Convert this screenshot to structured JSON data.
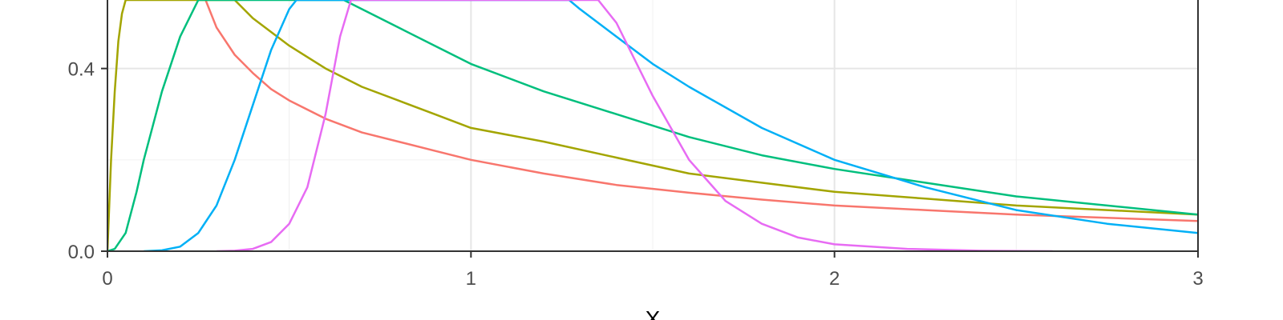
{
  "chart_data": {
    "type": "line",
    "title": "",
    "xlabel": "X",
    "ylabel": "",
    "xlim": [
      0,
      3
    ],
    "ylim": [
      0,
      0.55
    ],
    "grid": true,
    "x_major_ticks": [
      0,
      1,
      2,
      3
    ],
    "x_tick_labels": [
      "0",
      "1",
      "2",
      "3"
    ],
    "x_minor_ticks": [
      0.5,
      1.5,
      2.5
    ],
    "y_major_ticks": [
      0,
      0.4
    ],
    "y_tick_labels": [
      "0.0",
      "0.4"
    ],
    "y_minor_ticks": [
      0.2
    ],
    "series": [
      {
        "color": "#F8766D",
        "x": [
          0.27,
          0.3,
          0.35,
          0.4,
          0.45,
          0.5,
          0.6,
          0.7,
          0.8,
          0.9,
          1.0,
          1.2,
          1.4,
          1.6,
          1.8,
          2.0,
          2.25,
          2.5,
          2.75,
          3.0
        ],
        "y": [
          0.55,
          0.49,
          0.43,
          0.39,
          0.355,
          0.33,
          0.29,
          0.26,
          0.24,
          0.22,
          0.2,
          0.17,
          0.145,
          0.128,
          0.113,
          0.1,
          0.09,
          0.08,
          0.073,
          0.066
        ]
      },
      {
        "color": "#A3A500",
        "x": [
          0,
          0.01,
          0.02,
          0.03,
          0.04,
          0.05,
          0.35,
          0.4,
          0.5,
          0.6,
          0.7,
          0.8,
          0.9,
          1.0,
          1.2,
          1.4,
          1.6,
          1.8,
          2.0,
          2.25,
          2.5,
          2.75,
          3.0
        ],
        "y": [
          0,
          0.2,
          0.35,
          0.46,
          0.52,
          0.55,
          0.55,
          0.51,
          0.45,
          0.4,
          0.36,
          0.33,
          0.3,
          0.27,
          0.24,
          0.205,
          0.17,
          0.15,
          0.13,
          0.115,
          0.1,
          0.09,
          0.08
        ]
      },
      {
        "color": "#00BF7D",
        "x": [
          0,
          0.02,
          0.05,
          0.08,
          0.1,
          0.15,
          0.2,
          0.25,
          0.65,
          0.7,
          0.8,
          0.9,
          1.0,
          1.2,
          1.4,
          1.6,
          1.8,
          2.0,
          2.25,
          2.5,
          2.75,
          3.0
        ],
        "y": [
          0,
          0.005,
          0.04,
          0.13,
          0.2,
          0.35,
          0.47,
          0.55,
          0.55,
          0.53,
          0.49,
          0.45,
          0.41,
          0.35,
          0.3,
          0.25,
          0.21,
          0.18,
          0.15,
          0.12,
          0.1,
          0.08
        ]
      },
      {
        "color": "#00B0F6",
        "x": [
          0.1,
          0.15,
          0.2,
          0.25,
          0.3,
          0.35,
          0.4,
          0.45,
          0.5,
          0.52,
          1.27,
          1.3,
          1.4,
          1.5,
          1.6,
          1.8,
          2.0,
          2.25,
          2.5,
          2.75,
          3.0
        ],
        "y": [
          0,
          0.002,
          0.01,
          0.04,
          0.1,
          0.2,
          0.32,
          0.44,
          0.53,
          0.55,
          0.55,
          0.53,
          0.47,
          0.41,
          0.36,
          0.27,
          0.2,
          0.14,
          0.09,
          0.06,
          0.04
        ]
      },
      {
        "color": "#E76BF3",
        "x": [
          0.3,
          0.35,
          0.4,
          0.45,
          0.5,
          0.55,
          0.6,
          0.64,
          0.67,
          1.35,
          1.4,
          1.5,
          1.6,
          1.7,
          1.8,
          1.9,
          2.0,
          2.2,
          2.4,
          2.6
        ],
        "y": [
          0,
          0.001,
          0.005,
          0.02,
          0.06,
          0.14,
          0.3,
          0.47,
          0.55,
          0.55,
          0.5,
          0.34,
          0.2,
          0.11,
          0.06,
          0.03,
          0.015,
          0.005,
          0.001,
          0
        ]
      }
    ]
  }
}
